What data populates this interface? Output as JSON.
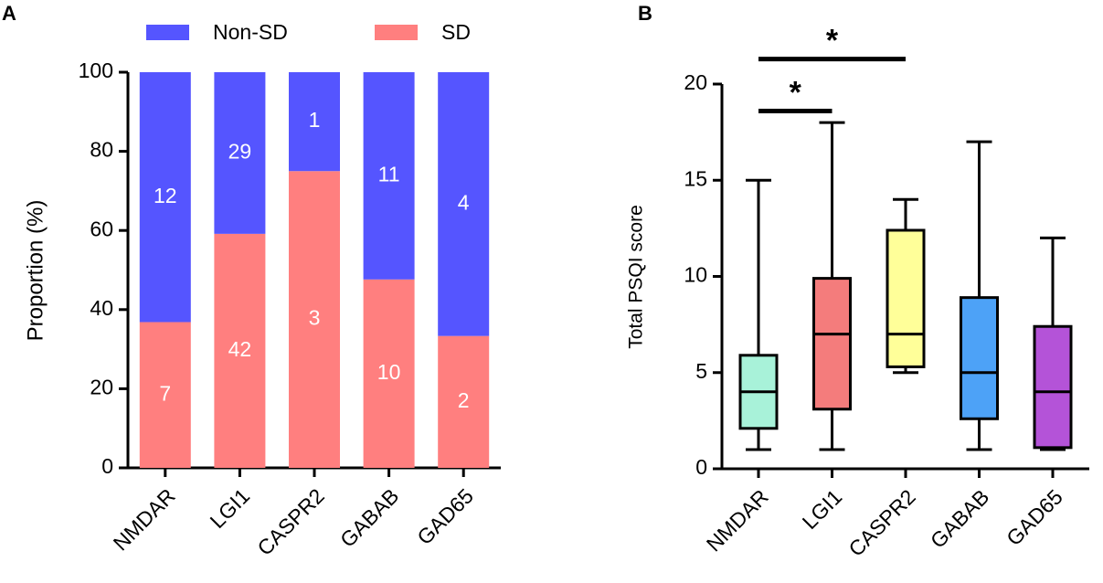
{
  "chart_data": [
    {
      "type": "bar",
      "stacked": true,
      "panel_label": "A",
      "ylabel": "Proportion (%)",
      "categories": [
        "NMDAR",
        "LGI1",
        "CASPR2",
        "GABAB",
        "GAD65"
      ],
      "series": [
        {
          "name": "SD",
          "color": "#ff7f7f",
          "values": [
            36.84,
            59.15,
            75,
            47.62,
            33.33
          ],
          "counts": [
            7,
            42,
            3,
            10,
            2
          ]
        },
        {
          "name": "Non-SD",
          "color": "#5555ff",
          "values": [
            63.16,
            40.85,
            25,
            52.38,
            66.67
          ],
          "counts": [
            12,
            29,
            1,
            11,
            4
          ]
        }
      ],
      "ylim": [
        0,
        100
      ],
      "yticks": [
        0,
        20,
        40,
        60,
        80,
        100
      ]
    },
    {
      "type": "box",
      "panel_label": "B",
      "ylabel": "Total PSQI score",
      "categories": [
        "NMDAR",
        "LGI1",
        "CASPR2",
        "GABAB",
        "GAD65"
      ],
      "colors": [
        "#a8f2d9",
        "#f47c7c",
        "#ffff99",
        "#4da2f7",
        "#b453d8"
      ],
      "min": [
        1,
        1,
        5,
        1,
        1
      ],
      "q1": [
        2.1,
        3.1,
        5.3,
        2.6,
        1.1
      ],
      "median": [
        4,
        7,
        7,
        5,
        4
      ],
      "q3": [
        5.9,
        9.9,
        12.4,
        8.9,
        7.4
      ],
      "max": [
        15,
        18,
        14,
        17,
        12
      ],
      "ylim": [
        0,
        20
      ],
      "yticks": [
        0,
        5,
        10,
        15,
        20
      ],
      "annotations": [
        {
          "from": 0,
          "to": 1,
          "y": 18.6,
          "label": "*"
        },
        {
          "from": 0,
          "to": 2,
          "y": 21.3,
          "label": "*"
        }
      ]
    }
  ]
}
